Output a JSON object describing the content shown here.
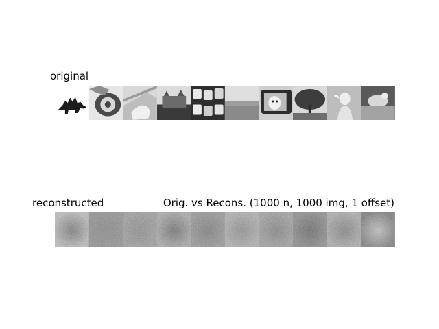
{
  "labels": {
    "original": "original",
    "reconstructed": "reconstructed",
    "title": "Orig. vs Recons. (1000 n, 1000 img, 1 offset)"
  },
  "original_tiles": [
    {
      "name": "stegosaurus-thumbnail",
      "bg": "#f4f4f4"
    },
    {
      "name": "rotary-phone-thumbnail",
      "bg": "#d9d9d9"
    },
    {
      "name": "hand-keyboard-thumbnail",
      "bg": "#d0d0d0"
    },
    {
      "name": "castle-thumbnail",
      "bg": "#9a9a9a"
    },
    {
      "name": "keyboard-keys-thumbnail",
      "bg": "#707070"
    },
    {
      "name": "sky-horizon-thumbnail",
      "bg": "#b5b5b5"
    },
    {
      "name": "tv-dog-thumbnail",
      "bg": "#6f6f6f"
    },
    {
      "name": "tree-thumbnail",
      "bg": "#8a8a8a"
    },
    {
      "name": "child-portrait-thumbnail",
      "bg": "#cfcfcf"
    },
    {
      "name": "table-scene-thumbnail",
      "bg": "#7e7e7e"
    }
  ],
  "reconstructed_tiles": [
    {
      "name": "reconstruction-1",
      "tone": "#bdbdbd",
      "center": "#4e4e4e"
    },
    {
      "name": "reconstruction-2",
      "tone": "#737373",
      "center": "#666666"
    },
    {
      "name": "reconstruction-3",
      "tone": "#8a8a8a",
      "center": "#6d6d6d"
    },
    {
      "name": "reconstruction-4",
      "tone": "#9d9d9d",
      "center": "#3f3f3f"
    },
    {
      "name": "reconstruction-5",
      "tone": "#7e7e7e",
      "center": "#535353"
    },
    {
      "name": "reconstruction-6",
      "tone": "#a7a7a7",
      "center": "#707070"
    },
    {
      "name": "reconstruction-7",
      "tone": "#8e8e8e",
      "center": "#606060"
    },
    {
      "name": "reconstruction-8",
      "tone": "#6d6d6d",
      "center": "#2f2f2f"
    },
    {
      "name": "reconstruction-9",
      "tone": "#a2a2a2",
      "center": "#5d5d5d"
    },
    {
      "name": "reconstruction-10",
      "tone": "#505050",
      "center": "#c6c6c6"
    }
  ]
}
